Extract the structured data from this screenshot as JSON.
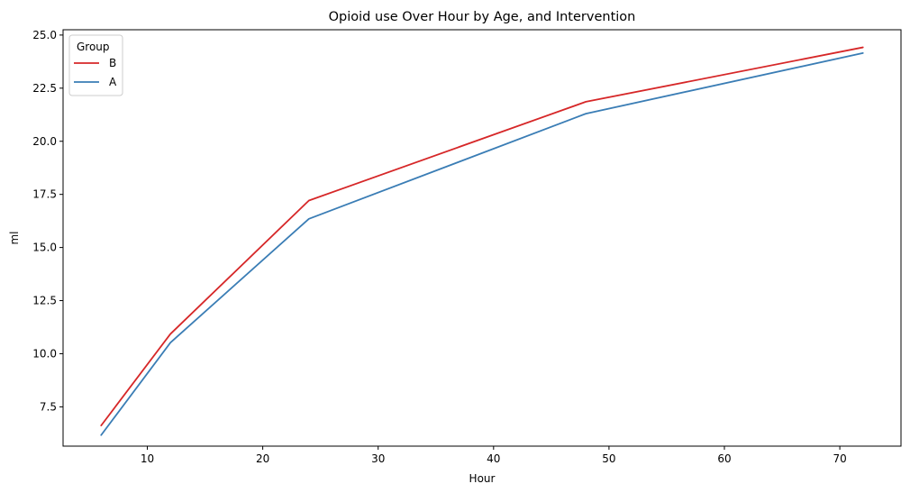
{
  "chart_data": {
    "type": "line",
    "title": "Opioid use Over Hour by Age, and Intervention",
    "xlabel": "Hour",
    "ylabel": "ml",
    "xlim": [
      2.7,
      75.3
    ],
    "ylim": [
      5.65,
      25.25
    ],
    "xticks": [
      10,
      20,
      30,
      40,
      50,
      60,
      70
    ],
    "yticks": [
      7.5,
      10.0,
      12.5,
      15.0,
      17.5,
      20.0,
      22.5,
      25.0
    ],
    "grid": false,
    "legend": {
      "title": "Group",
      "placement": "top-left"
    },
    "x": [
      6,
      12,
      24,
      48,
      72
    ],
    "series": [
      {
        "name": "B",
        "color": "#d62728",
        "values": [
          6.62,
          10.93,
          17.21,
          21.86,
          24.42
        ]
      },
      {
        "name": "A",
        "color": "#3a7db5",
        "values": [
          6.17,
          10.52,
          16.35,
          21.3,
          24.15
        ]
      }
    ]
  }
}
